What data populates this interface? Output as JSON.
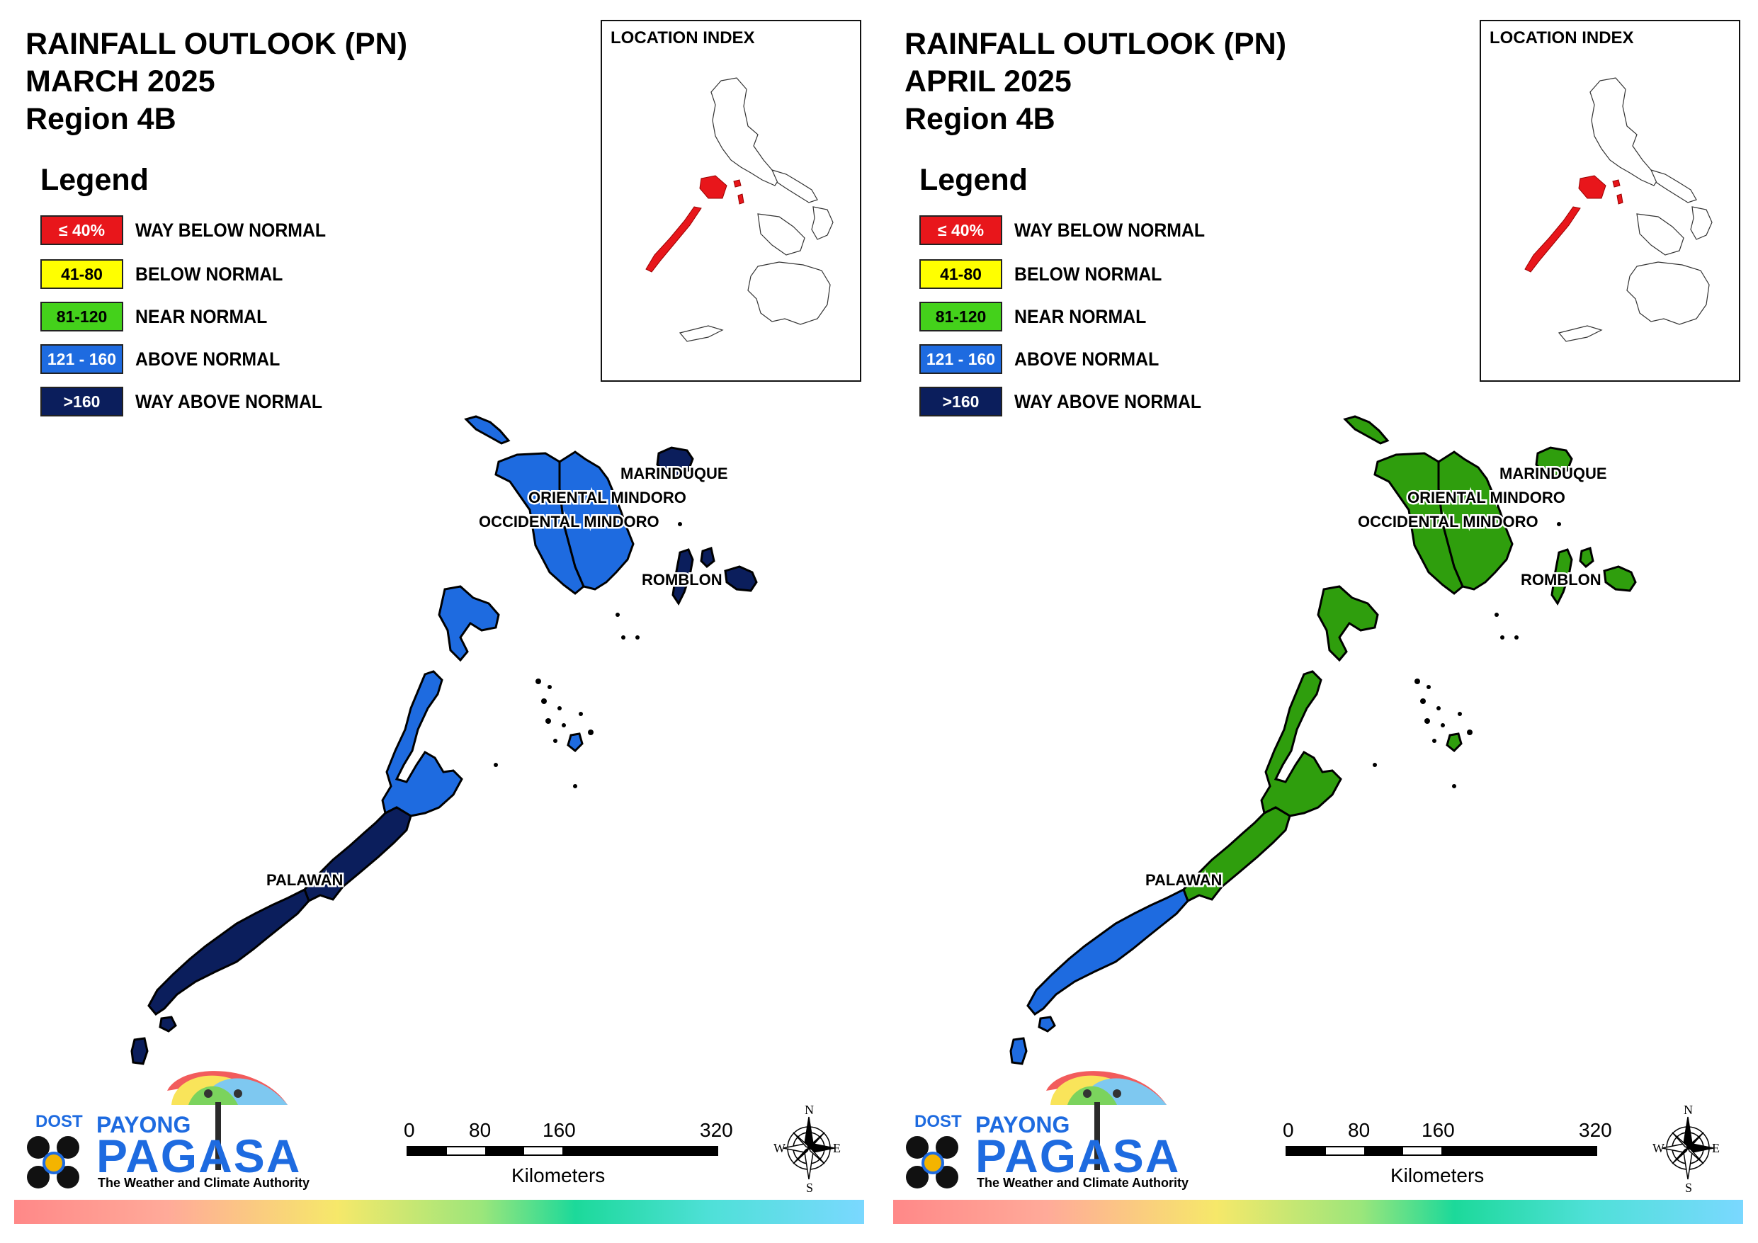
{
  "panels": [
    {
      "title_line1": "RAINFALL OUTLOOK (PN)",
      "title_line2": "MARCH 2025",
      "title_line3": "Region 4B",
      "mindoro_fill": "#1e6be0",
      "mindoro_west_fill": "#1e6be0",
      "marinduque_fill": "#0b1e5c",
      "romblon_fill": "#0b1e5c",
      "palawan_north_fill": "#1e6be0",
      "palawan_mid_fill": "#0b1e5c",
      "palawan_south_fill": "#0b1e5c",
      "cuyo_fill": "#1e6be0"
    },
    {
      "title_line1": "RAINFALL OUTLOOK (PN)",
      "title_line2": "APRIL 2025",
      "title_line3": "Region 4B",
      "mindoro_fill": "#2f9e0d",
      "mindoro_west_fill": "#2f9e0d",
      "marinduque_fill": "#2f9e0d",
      "romblon_fill": "#2f9e0d",
      "palawan_north_fill": "#2f9e0d",
      "palawan_mid_fill": "#2f9e0d",
      "palawan_south_fill": "#1e6be0",
      "cuyo_fill": "#2f9e0d"
    }
  ],
  "legend": {
    "heading": "Legend",
    "items": [
      {
        "range": "≤ 40%",
        "label": "WAY BELOW NORMAL",
        "color": "#e8161b",
        "text_color": "#ffffff"
      },
      {
        "range": "41-80",
        "label": "BELOW NORMAL",
        "color": "#ffff00",
        "text_color": "#000000"
      },
      {
        "range": "81-120",
        "label": "NEAR NORMAL",
        "color": "#44d11b",
        "text_color": "#000000"
      },
      {
        "range": "121 - 160",
        "label": "ABOVE NORMAL",
        "color": "#1e6be0",
        "text_color": "#ffffff"
      },
      {
        "range": ">160",
        "label": "WAY ABOVE NORMAL",
        "color": "#0b1e5c",
        "text_color": "#ffffff"
      }
    ]
  },
  "inset": {
    "title": "LOCATION INDEX",
    "highlight_color": "#e8161b"
  },
  "map_labels": {
    "marinduque": "MARINDUQUE",
    "oriental_mindoro": "ORIENTAL MINDORO",
    "occidental_mindoro": "OCCIDENTAL MINDORO",
    "romblon": "ROMBLON",
    "palawan": "PALAWAN"
  },
  "scale": {
    "ticks": [
      "0",
      "80",
      "160",
      "320"
    ],
    "unit": "Kilometers"
  },
  "compass": {
    "n": "N",
    "s": "S",
    "e": "E",
    "w": "W"
  },
  "logo": {
    "dost": "DOST",
    "payong": "PAYONG",
    "pagasa": "PAGASA",
    "tagline": "The Weather and Climate Authority"
  }
}
